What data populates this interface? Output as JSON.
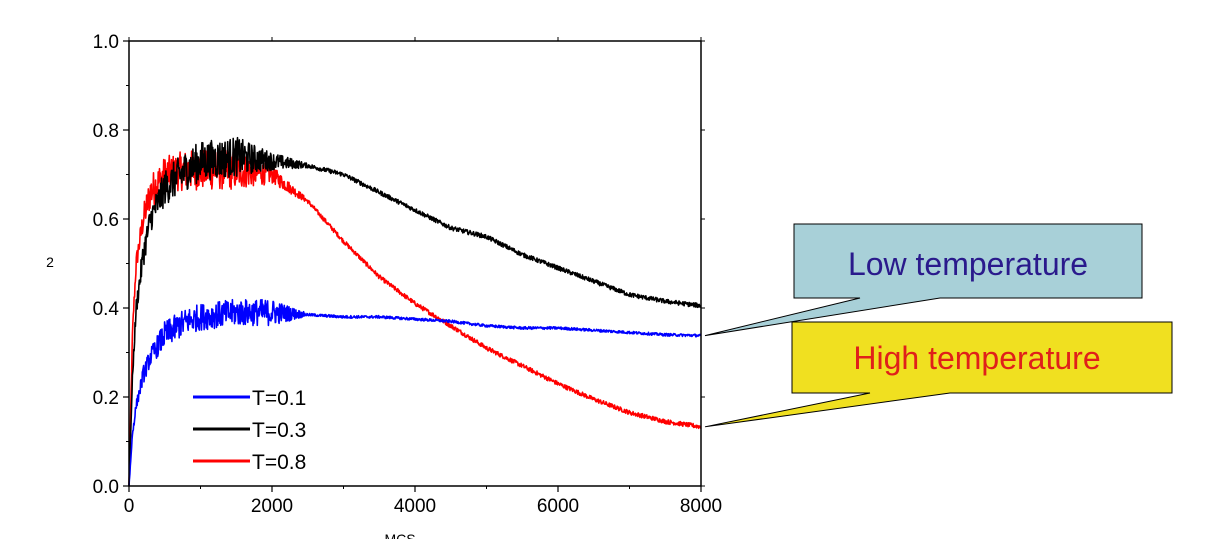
{
  "chart_data": {
    "type": "line",
    "xlabel": "MCS",
    "ylabel": "2",
    "xlim": [
      0,
      8000
    ],
    "ylim": [
      0.0,
      1.0
    ],
    "xticks": [
      0,
      2000,
      4000,
      6000,
      8000
    ],
    "yticks": [
      0.0,
      0.2,
      0.4,
      0.6,
      0.8,
      1.0
    ],
    "xtick_labels": [
      "0",
      "2000",
      "4000",
      "6000",
      "8000"
    ],
    "ytick_labels": [
      "0.0",
      "0.2",
      "0.4",
      "0.6",
      "0.8",
      "1.0"
    ],
    "grid": false,
    "legend_position": "bottom-left",
    "series": [
      {
        "name": "T=0.1",
        "color": "#0000ff",
        "x": [
          0,
          50,
          100,
          200,
          300,
          500,
          800,
          1000,
          1500,
          2000,
          2500,
          3000,
          3500,
          4000,
          4500,
          5000,
          5500,
          6000,
          6500,
          7000,
          7500,
          8000
        ],
        "y": [
          0.0,
          0.12,
          0.18,
          0.25,
          0.29,
          0.34,
          0.37,
          0.38,
          0.39,
          0.39,
          0.385,
          0.38,
          0.38,
          0.375,
          0.37,
          0.36,
          0.355,
          0.355,
          0.35,
          0.345,
          0.34,
          0.338
        ],
        "noise": [
          0,
          0.01,
          0.01,
          0.02,
          0.02,
          0.03,
          0.03,
          0.03,
          0.03,
          0.03,
          0.003,
          0.003,
          0.003,
          0.003,
          0.003,
          0.003,
          0.003,
          0.003,
          0.003,
          0.003,
          0.003,
          0.003
        ]
      },
      {
        "name": "T=0.3",
        "color": "#000000",
        "x": [
          0,
          50,
          100,
          200,
          300,
          500,
          800,
          1000,
          1500,
          2000,
          2500,
          3000,
          3500,
          4000,
          4500,
          5000,
          5500,
          6000,
          6500,
          7000,
          7500,
          8000
        ],
        "y": [
          0.0,
          0.25,
          0.4,
          0.52,
          0.6,
          0.67,
          0.71,
          0.73,
          0.74,
          0.73,
          0.72,
          0.7,
          0.66,
          0.62,
          0.58,
          0.56,
          0.52,
          0.49,
          0.46,
          0.43,
          0.415,
          0.405
        ],
        "noise": [
          0,
          0.01,
          0.02,
          0.03,
          0.03,
          0.04,
          0.045,
          0.045,
          0.045,
          0.02,
          0.005,
          0.005,
          0.005,
          0.005,
          0.005,
          0.005,
          0.005,
          0.005,
          0.005,
          0.005,
          0.005,
          0.005
        ]
      },
      {
        "name": "T=0.8",
        "color": "#ff0000",
        "x": [
          0,
          50,
          100,
          200,
          300,
          500,
          800,
          1000,
          1500,
          2000,
          2500,
          3000,
          3500,
          4000,
          4500,
          5000,
          5500,
          6000,
          6500,
          7000,
          7500,
          8000
        ],
        "y": [
          0.0,
          0.35,
          0.5,
          0.6,
          0.66,
          0.7,
          0.71,
          0.71,
          0.71,
          0.7,
          0.64,
          0.55,
          0.47,
          0.41,
          0.36,
          0.31,
          0.27,
          0.23,
          0.195,
          0.165,
          0.145,
          0.133
        ],
        "noise": [
          0,
          0.01,
          0.02,
          0.03,
          0.04,
          0.04,
          0.045,
          0.045,
          0.045,
          0.02,
          0.005,
          0.005,
          0.005,
          0.005,
          0.005,
          0.005,
          0.005,
          0.005,
          0.005,
          0.005,
          0.005,
          0.005
        ]
      }
    ],
    "annotations": [
      {
        "text": "Low temperature",
        "points_to_series": "T=0.1",
        "at_x": 8000,
        "bg_color": "#a8d0d8",
        "text_color": "#2a1a8c"
      },
      {
        "text": "High temperature",
        "points_to_series": "T=0.8",
        "at_x": 8000,
        "bg_color": "#f0e020",
        "text_color": "#e0201a"
      }
    ]
  }
}
